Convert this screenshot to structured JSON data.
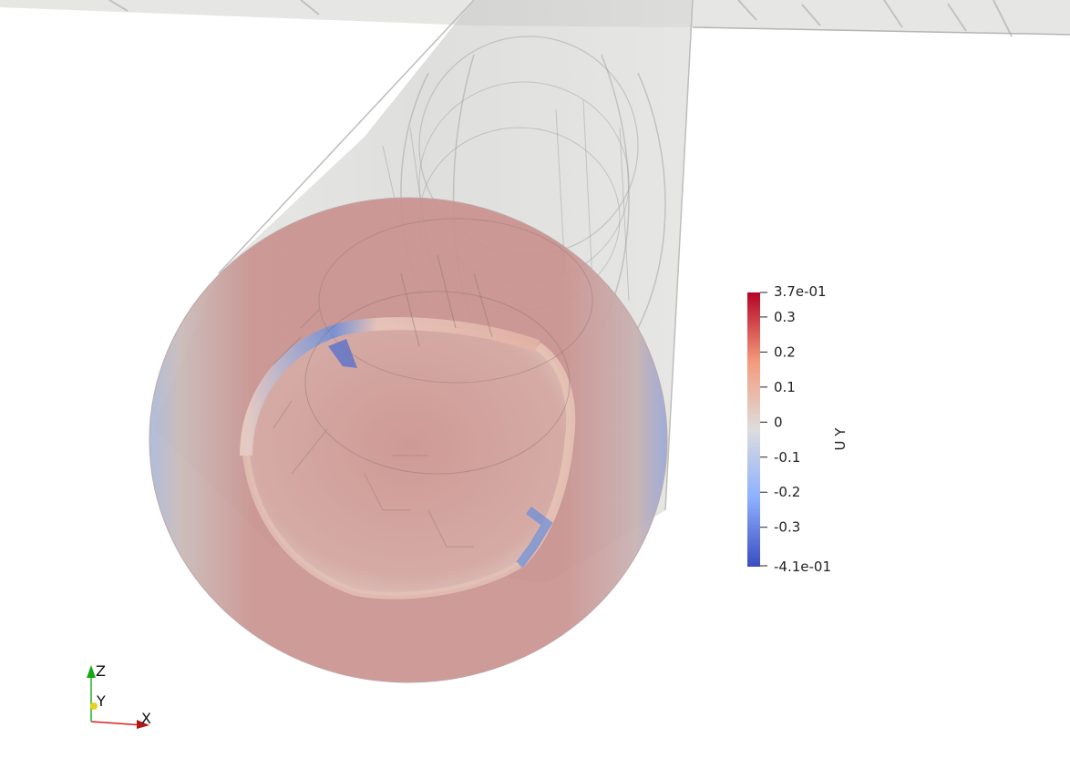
{
  "scene": {
    "field": "U Y",
    "colormap": "Cool to Warm",
    "colors": {
      "background": "#ffffff",
      "pipe_surface": "#c8c8c6",
      "cap_base": "#c7928f",
      "low": "#3b4cc0",
      "mid": "#dddddd",
      "high": "#b40426"
    }
  },
  "colorbar": {
    "title": "U Y",
    "range": [
      -0.41,
      0.37
    ],
    "max_label": "3.7e-01",
    "min_label": "-4.1e-01",
    "ticks": [
      {
        "value": 0.3,
        "label": "0.3"
      },
      {
        "value": 0.2,
        "label": "0.2"
      },
      {
        "value": 0.1,
        "label": "0.1"
      },
      {
        "value": 0.0,
        "label": "0"
      },
      {
        "value": -0.1,
        "label": "-0.1"
      },
      {
        "value": -0.2,
        "label": "-0.2"
      },
      {
        "value": -0.3,
        "label": "-0.3"
      }
    ]
  },
  "orientation_axes": {
    "x_label": "X",
    "y_label": "Y",
    "z_label": "Z",
    "x_color": "#d62020",
    "y_color": "#e6d21e",
    "z_color": "#1fb41f"
  }
}
